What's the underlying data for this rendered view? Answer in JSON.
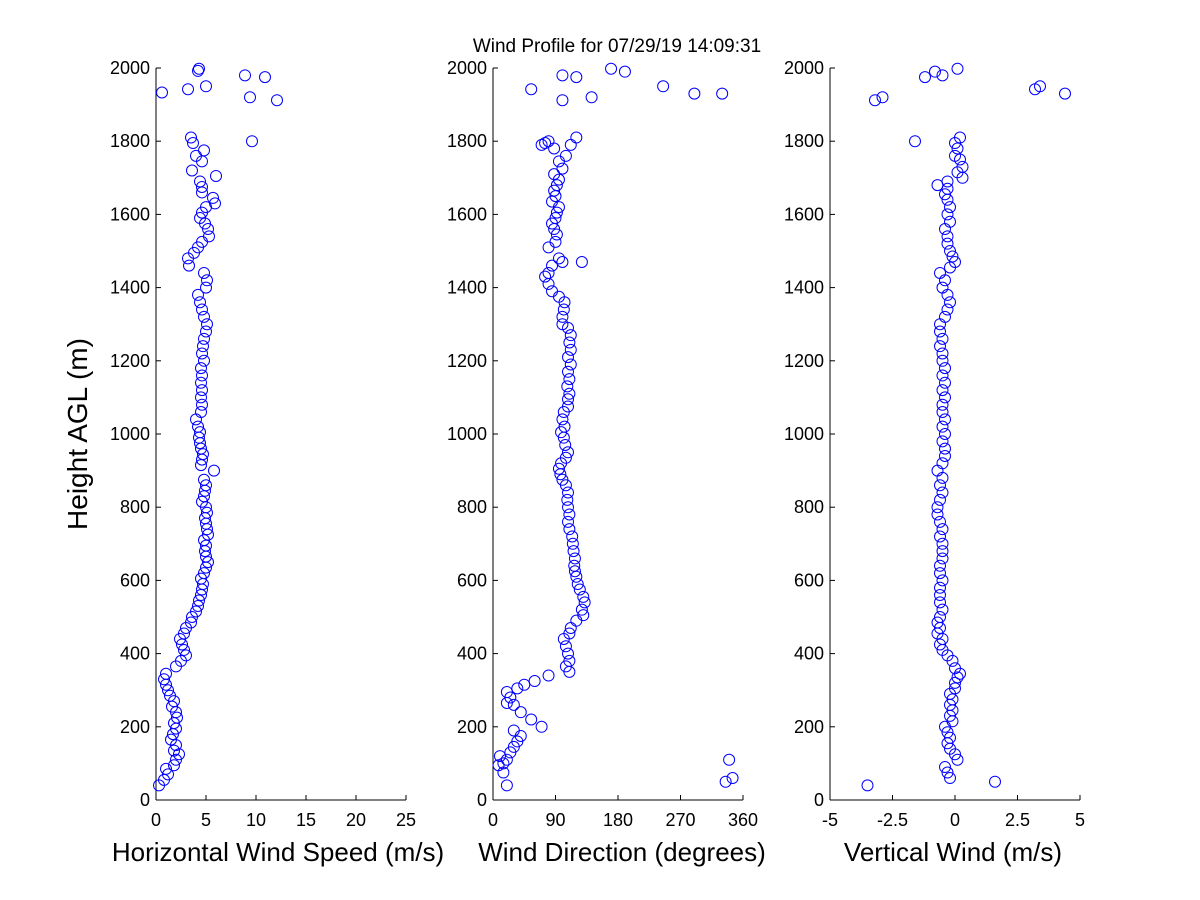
{
  "figure": {
    "title": "Wind Profile for  07/29/19 14:09:31"
  },
  "chart_data": [
    {
      "type": "scatter",
      "xlabel": "Horizontal Wind Speed (m/s)",
      "ylabel": "Height AGL (m)",
      "xlim": [
        0,
        25
      ],
      "ylim": [
        0,
        2000
      ],
      "xticks": [
        "0",
        "5",
        "10",
        "15",
        "20",
        "25"
      ],
      "yticks": [
        "0",
        "200",
        "400",
        "600",
        "800",
        "1000",
        "1200",
        "1400",
        "1600",
        "1800",
        "2000"
      ],
      "marker": "circle-open",
      "color": "#0000ff",
      "points": [
        [
          0.3,
          40
        ],
        [
          0.8,
          55
        ],
        [
          1.2,
          70
        ],
        [
          1.0,
          85
        ],
        [
          1.8,
          95
        ],
        [
          2.0,
          110
        ],
        [
          2.3,
          125
        ],
        [
          1.8,
          135
        ],
        [
          2.0,
          150
        ],
        [
          1.5,
          165
        ],
        [
          1.7,
          180
        ],
        [
          2.0,
          195
        ],
        [
          1.8,
          210
        ],
        [
          2.1,
          225
        ],
        [
          2.0,
          240
        ],
        [
          1.6,
          255
        ],
        [
          1.8,
          270
        ],
        [
          1.4,
          285
        ],
        [
          1.2,
          300
        ],
        [
          1.0,
          315
        ],
        [
          0.8,
          330
        ],
        [
          1.0,
          345
        ],
        [
          2.0,
          365
        ],
        [
          2.5,
          380
        ],
        [
          3.0,
          395
        ],
        [
          2.8,
          410
        ],
        [
          2.6,
          425
        ],
        [
          2.4,
          440
        ],
        [
          2.8,
          455
        ],
        [
          3.0,
          470
        ],
        [
          3.5,
          485
        ],
        [
          3.6,
          500
        ],
        [
          4.0,
          515
        ],
        [
          4.2,
          530
        ],
        [
          4.3,
          545
        ],
        [
          4.5,
          560
        ],
        [
          4.6,
          575
        ],
        [
          4.7,
          590
        ],
        [
          4.5,
          605
        ],
        [
          4.8,
          620
        ],
        [
          5.0,
          635
        ],
        [
          5.2,
          650
        ],
        [
          5.0,
          665
        ],
        [
          4.9,
          680
        ],
        [
          5.0,
          695
        ],
        [
          4.8,
          710
        ],
        [
          5.2,
          725
        ],
        [
          5.1,
          740
        ],
        [
          5.0,
          755
        ],
        [
          4.9,
          770
        ],
        [
          5.1,
          785
        ],
        [
          5.0,
          800
        ],
        [
          4.6,
          815
        ],
        [
          4.8,
          830
        ],
        [
          4.9,
          845
        ],
        [
          5.0,
          860
        ],
        [
          4.8,
          875
        ],
        [
          5.8,
          900
        ],
        [
          4.5,
          915
        ],
        [
          4.6,
          930
        ],
        [
          4.7,
          945
        ],
        [
          4.5,
          960
        ],
        [
          4.4,
          975
        ],
        [
          4.3,
          990
        ],
        [
          4.4,
          1005
        ],
        [
          4.2,
          1020
        ],
        [
          4.0,
          1040
        ],
        [
          4.5,
          1060
        ],
        [
          4.6,
          1080
        ],
        [
          4.5,
          1100
        ],
        [
          4.6,
          1120
        ],
        [
          4.5,
          1140
        ],
        [
          4.6,
          1160
        ],
        [
          4.5,
          1180
        ],
        [
          4.8,
          1200
        ],
        [
          4.6,
          1220
        ],
        [
          4.7,
          1240
        ],
        [
          4.8,
          1260
        ],
        [
          5.0,
          1280
        ],
        [
          5.1,
          1300
        ],
        [
          4.8,
          1320
        ],
        [
          4.6,
          1340
        ],
        [
          4.4,
          1360
        ],
        [
          4.2,
          1380
        ],
        [
          5.0,
          1400
        ],
        [
          5.1,
          1420
        ],
        [
          4.8,
          1440
        ],
        [
          3.3,
          1460
        ],
        [
          3.2,
          1480
        ],
        [
          3.8,
          1495
        ],
        [
          4.2,
          1510
        ],
        [
          4.6,
          1525
        ],
        [
          5.3,
          1540
        ],
        [
          5.2,
          1560
        ],
        [
          4.9,
          1575
        ],
        [
          4.4,
          1590
        ],
        [
          4.6,
          1605
        ],
        [
          5.0,
          1620
        ],
        [
          5.9,
          1630
        ],
        [
          5.7,
          1645
        ],
        [
          4.6,
          1660
        ],
        [
          4.6,
          1675
        ],
        [
          4.4,
          1690
        ],
        [
          6.0,
          1705
        ],
        [
          3.6,
          1720
        ],
        [
          4.6,
          1745
        ],
        [
          4.0,
          1760
        ],
        [
          4.8,
          1775
        ],
        [
          3.7,
          1795
        ],
        [
          3.5,
          1810
        ],
        [
          9.6,
          1800
        ],
        [
          12.1,
          1912
        ],
        [
          9.4,
          1920
        ],
        [
          0.6,
          1933
        ],
        [
          3.2,
          1942
        ],
        [
          5.0,
          1950
        ],
        [
          8.9,
          1980
        ],
        [
          10.9,
          1975
        ],
        [
          4.2,
          1992
        ],
        [
          4.3,
          1998
        ]
      ]
    },
    {
      "type": "scatter",
      "xlabel": "Wind Direction (degrees)",
      "ylabel": "",
      "xlim": [
        0,
        360
      ],
      "ylim": [
        0,
        2000
      ],
      "xticks": [
        "0",
        "90",
        "180",
        "270",
        "360"
      ],
      "yticks": [
        "0",
        "200",
        "400",
        "600",
        "800",
        "1000",
        "1200",
        "1400",
        "1600",
        "1800",
        "2000"
      ],
      "marker": "circle-open",
      "color": "#0000ff",
      "points": [
        [
          20,
          40
        ],
        [
          8,
          95
        ],
        [
          15,
          100
        ],
        [
          20,
          110
        ],
        [
          10,
          120
        ],
        [
          15,
          75
        ],
        [
          340,
          110
        ],
        [
          345,
          60
        ],
        [
          335,
          50
        ],
        [
          25,
          130
        ],
        [
          30,
          145
        ],
        [
          35,
          160
        ],
        [
          40,
          175
        ],
        [
          30,
          190
        ],
        [
          70,
          200
        ],
        [
          55,
          220
        ],
        [
          40,
          240
        ],
        [
          30,
          260
        ],
        [
          20,
          265
        ],
        [
          25,
          280
        ],
        [
          20,
          295
        ],
        [
          35,
          305
        ],
        [
          45,
          315
        ],
        [
          60,
          325
        ],
        [
          80,
          340
        ],
        [
          110,
          350
        ],
        [
          105,
          365
        ],
        [
          110,
          380
        ],
        [
          108,
          400
        ],
        [
          105,
          420
        ],
        [
          102,
          440
        ],
        [
          110,
          455
        ],
        [
          112,
          470
        ],
        [
          120,
          490
        ],
        [
          130,
          505
        ],
        [
          128,
          520
        ],
        [
          132,
          540
        ],
        [
          130,
          555
        ],
        [
          125,
          575
        ],
        [
          122,
          590
        ],
        [
          120,
          610
        ],
        [
          118,
          625
        ],
        [
          117,
          640
        ],
        [
          118,
          660
        ],
        [
          116,
          680
        ],
        [
          115,
          700
        ],
        [
          114,
          720
        ],
        [
          110,
          740
        ],
        [
          108,
          760
        ],
        [
          110,
          780
        ],
        [
          108,
          800
        ],
        [
          107,
          820
        ],
        [
          108,
          840
        ],
        [
          105,
          860
        ],
        [
          100,
          875
        ],
        [
          97,
          890
        ],
        [
          95,
          905
        ],
        [
          98,
          920
        ],
        [
          105,
          935
        ],
        [
          108,
          950
        ],
        [
          104,
          970
        ],
        [
          102,
          990
        ],
        [
          98,
          1005
        ],
        [
          103,
          1020
        ],
        [
          100,
          1040
        ],
        [
          102,
          1060
        ],
        [
          108,
          1075
        ],
        [
          108,
          1095
        ],
        [
          110,
          1110
        ],
        [
          107,
          1130
        ],
        [
          110,
          1150
        ],
        [
          108,
          1170
        ],
        [
          112,
          1190
        ],
        [
          108,
          1210
        ],
        [
          112,
          1230
        ],
        [
          110,
          1250
        ],
        [
          112,
          1270
        ],
        [
          108,
          1290
        ],
        [
          100,
          1300
        ],
        [
          100,
          1320
        ],
        [
          102,
          1340
        ],
        [
          103,
          1360
        ],
        [
          95,
          1375
        ],
        [
          85,
          1390
        ],
        [
          80,
          1410
        ],
        [
          75,
          1430
        ],
        [
          80,
          1440
        ],
        [
          85,
          1460
        ],
        [
          100,
          1470
        ],
        [
          128,
          1470
        ],
        [
          95,
          1480
        ],
        [
          80,
          1510
        ],
        [
          90,
          1525
        ],
        [
          92,
          1545
        ],
        [
          88,
          1560
        ],
        [
          85,
          1575
        ],
        [
          90,
          1590
        ],
        [
          92,
          1605
        ],
        [
          95,
          1620
        ],
        [
          85,
          1635
        ],
        [
          90,
          1650
        ],
        [
          88,
          1665
        ],
        [
          92,
          1680
        ],
        [
          95,
          1695
        ],
        [
          88,
          1710
        ],
        [
          100,
          1725
        ],
        [
          95,
          1745
        ],
        [
          105,
          1760
        ],
        [
          88,
          1780
        ],
        [
          75,
          1795
        ],
        [
          80,
          1800
        ],
        [
          70,
          1790
        ],
        [
          112,
          1790
        ],
        [
          120,
          1810
        ],
        [
          330,
          1930
        ],
        [
          290,
          1930
        ],
        [
          142,
          1920
        ],
        [
          100,
          1912
        ],
        [
          55,
          1942
        ],
        [
          245,
          1950
        ],
        [
          100,
          1980
        ],
        [
          120,
          1975
        ],
        [
          170,
          1998
        ],
        [
          190,
          1990
        ]
      ]
    },
    {
      "type": "scatter",
      "xlabel": "Vertical Wind (m/s)",
      "ylabel": "",
      "xlim": [
        -5,
        5
      ],
      "ylim": [
        0,
        2000
      ],
      "xticks": [
        "-5",
        "-2.5",
        "0",
        "2.5",
        "5"
      ],
      "yticks": [
        "0",
        "200",
        "400",
        "600",
        "800",
        "1000",
        "1200",
        "1400",
        "1600",
        "1800",
        "2000"
      ],
      "marker": "circle-open",
      "color": "#0000ff",
      "points": [
        [
          -3.5,
          40
        ],
        [
          1.6,
          50
        ],
        [
          -0.2,
          60
        ],
        [
          -0.3,
          75
        ],
        [
          -0.4,
          90
        ],
        [
          0.1,
          110
        ],
        [
          0.0,
          125
        ],
        [
          -0.2,
          140
        ],
        [
          -0.3,
          155
        ],
        [
          -0.2,
          170
        ],
        [
          -0.3,
          185
        ],
        [
          -0.4,
          200
        ],
        [
          -0.1,
          215
        ],
        [
          -0.2,
          230
        ],
        [
          -0.1,
          245
        ],
        [
          -0.2,
          260
        ],
        [
          -0.1,
          275
        ],
        [
          -0.2,
          290
        ],
        [
          0.0,
          305
        ],
        [
          0.0,
          320
        ],
        [
          0.1,
          335
        ],
        [
          0.2,
          345
        ],
        [
          0.0,
          360
        ],
        [
          -0.1,
          380
        ],
        [
          -0.3,
          395
        ],
        [
          -0.5,
          410
        ],
        [
          -0.6,
          425
        ],
        [
          -0.5,
          440
        ],
        [
          -0.7,
          455
        ],
        [
          -0.6,
          470
        ],
        [
          -0.7,
          485
        ],
        [
          -0.6,
          500
        ],
        [
          -0.5,
          520
        ],
        [
          -0.6,
          540
        ],
        [
          -0.6,
          560
        ],
        [
          -0.6,
          580
        ],
        [
          -0.5,
          600
        ],
        [
          -0.6,
          620
        ],
        [
          -0.6,
          640
        ],
        [
          -0.5,
          660
        ],
        [
          -0.5,
          680
        ],
        [
          -0.5,
          700
        ],
        [
          -0.6,
          720
        ],
        [
          -0.5,
          740
        ],
        [
          -0.6,
          760
        ],
        [
          -0.7,
          780
        ],
        [
          -0.7,
          800
        ],
        [
          -0.6,
          820
        ],
        [
          -0.5,
          840
        ],
        [
          -0.6,
          860
        ],
        [
          -0.5,
          880
        ],
        [
          -0.7,
          900
        ],
        [
          -0.5,
          920
        ],
        [
          -0.4,
          940
        ],
        [
          -0.4,
          960
        ],
        [
          -0.5,
          980
        ],
        [
          -0.4,
          1000
        ],
        [
          -0.5,
          1020
        ],
        [
          -0.4,
          1040
        ],
        [
          -0.5,
          1060
        ],
        [
          -0.5,
          1080
        ],
        [
          -0.4,
          1100
        ],
        [
          -0.5,
          1120
        ],
        [
          -0.4,
          1140
        ],
        [
          -0.5,
          1160
        ],
        [
          -0.4,
          1180
        ],
        [
          -0.5,
          1200
        ],
        [
          -0.5,
          1220
        ],
        [
          -0.6,
          1240
        ],
        [
          -0.5,
          1260
        ],
        [
          -0.6,
          1280
        ],
        [
          -0.6,
          1300
        ],
        [
          -0.4,
          1320
        ],
        [
          -0.3,
          1340
        ],
        [
          -0.2,
          1360
        ],
        [
          -0.3,
          1380
        ],
        [
          -0.5,
          1400
        ],
        [
          -0.4,
          1420
        ],
        [
          -0.6,
          1440
        ],
        [
          -0.2,
          1455
        ],
        [
          0.0,
          1470
        ],
        [
          -0.1,
          1485
        ],
        [
          -0.2,
          1500
        ],
        [
          -0.3,
          1520
        ],
        [
          -0.3,
          1540
        ],
        [
          -0.4,
          1560
        ],
        [
          -0.2,
          1580
        ],
        [
          -0.3,
          1600
        ],
        [
          -0.2,
          1620
        ],
        [
          -0.3,
          1640
        ],
        [
          -0.4,
          1655
        ],
        [
          -0.3,
          1670
        ],
        [
          -0.7,
          1680
        ],
        [
          -0.3,
          1690
        ],
        [
          0.3,
          1700
        ],
        [
          0.1,
          1715
        ],
        [
          0.3,
          1730
        ],
        [
          0.2,
          1750
        ],
        [
          0.0,
          1760
        ],
        [
          0.1,
          1780
        ],
        [
          0.0,
          1795
        ],
        [
          0.2,
          1810
        ],
        [
          -1.6,
          1800
        ],
        [
          -3.2,
          1912
        ],
        [
          -2.9,
          1920
        ],
        [
          3.2,
          1942
        ],
        [
          3.4,
          1950
        ],
        [
          4.4,
          1930
        ],
        [
          -1.2,
          1975
        ],
        [
          -0.8,
          1990
        ],
        [
          -0.5,
          1980
        ],
        [
          0.1,
          1998
        ]
      ]
    }
  ]
}
